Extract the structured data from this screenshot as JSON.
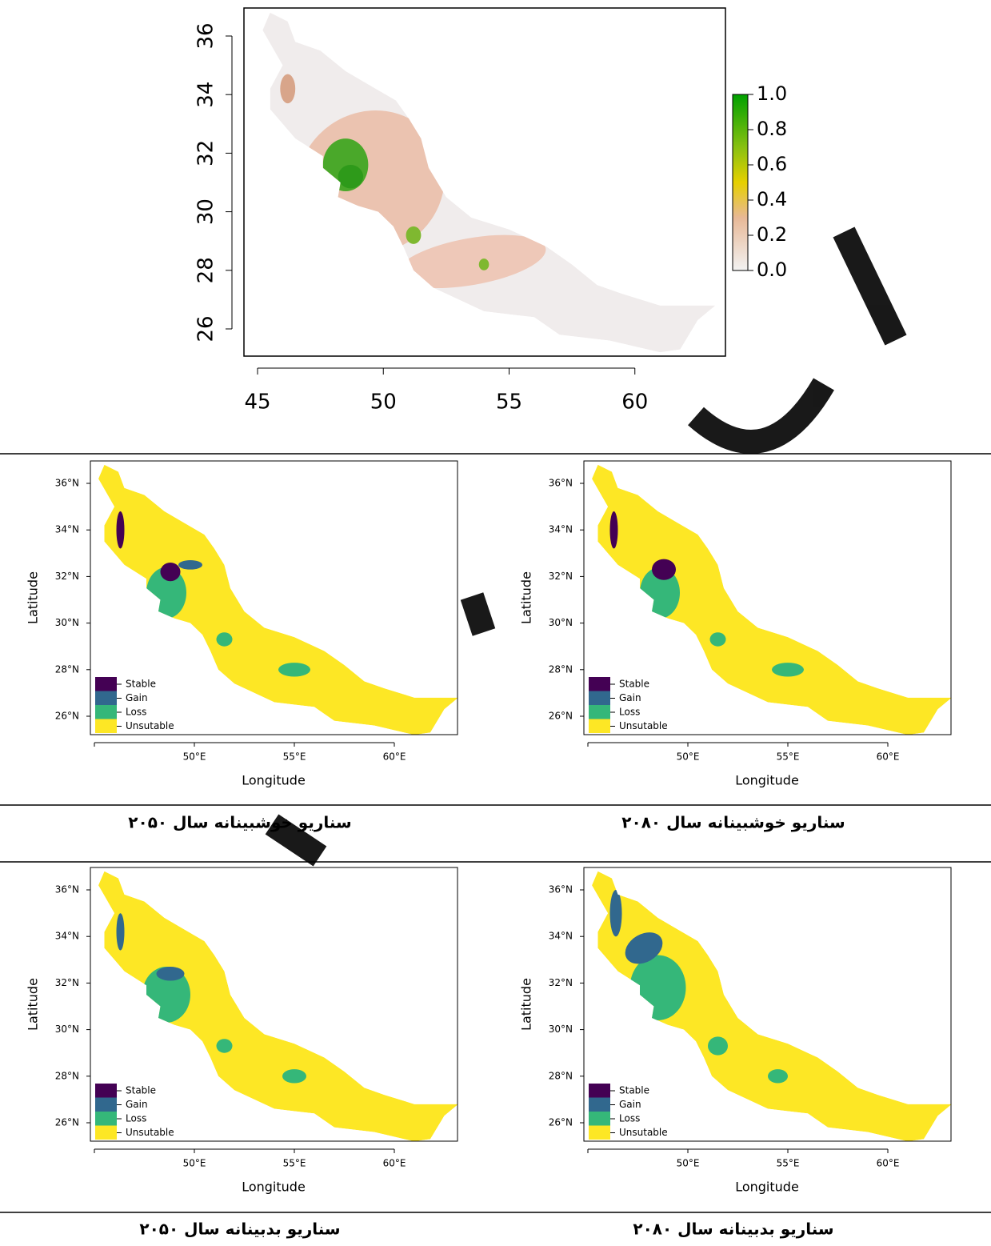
{
  "top_map": {
    "yticks": [
      "26",
      "28",
      "30",
      "32",
      "34",
      "36"
    ],
    "xticks": [
      "45",
      "50",
      "55",
      "60"
    ],
    "colorbar": [
      "0.0",
      "0.2",
      "0.4",
      "0.6",
      "0.8",
      "1.0"
    ]
  },
  "panels": [
    {
      "caption": "سناریو خوشبینانه سال ۲۰۵۰",
      "xlabel": "Longitude",
      "ylabel": "Latitude",
      "yticks": [
        "26°N",
        "28°N",
        "30°N",
        "32°N",
        "34°N",
        "36°N"
      ],
      "xticks": [
        "50°E",
        "55°E",
        "60°E"
      ],
      "legend": [
        "Stable",
        "Gain",
        "Loss",
        "Unsutable"
      ]
    },
    {
      "caption": "سناریو خوشبینانه سال ۲۰۸۰",
      "xlabel": "Longitude",
      "ylabel": "Latitude",
      "yticks": [
        "26°N",
        "28°N",
        "30°N",
        "32°N",
        "34°N",
        "36°N"
      ],
      "xticks": [
        "50°E",
        "55°E",
        "60°E"
      ],
      "legend": [
        "Stable",
        "Gain",
        "Loss",
        "Unsutable"
      ]
    },
    {
      "caption": "سناریو بدبینانه سال ۲۰۵۰",
      "xlabel": "Longitude",
      "ylabel": "Latitude",
      "yticks": [
        "26°N",
        "28°N",
        "30°N",
        "32°N",
        "34°N",
        "36°N"
      ],
      "xticks": [
        "50°E",
        "55°E",
        "60°E"
      ],
      "legend": [
        "Stable",
        "Gain",
        "Loss",
        "Unsutable"
      ]
    },
    {
      "caption": "سناریو بدبینانه سال ۲۰۸۰",
      "xlabel": "Longitude",
      "ylabel": "Latitude",
      "yticks": [
        "26°N",
        "28°N",
        "30°N",
        "32°N",
        "34°N",
        "36°N"
      ],
      "xticks": [
        "50°E",
        "55°E",
        "60°E"
      ],
      "legend": [
        "Stable",
        "Gain",
        "Loss",
        "Unsutable"
      ]
    }
  ]
}
